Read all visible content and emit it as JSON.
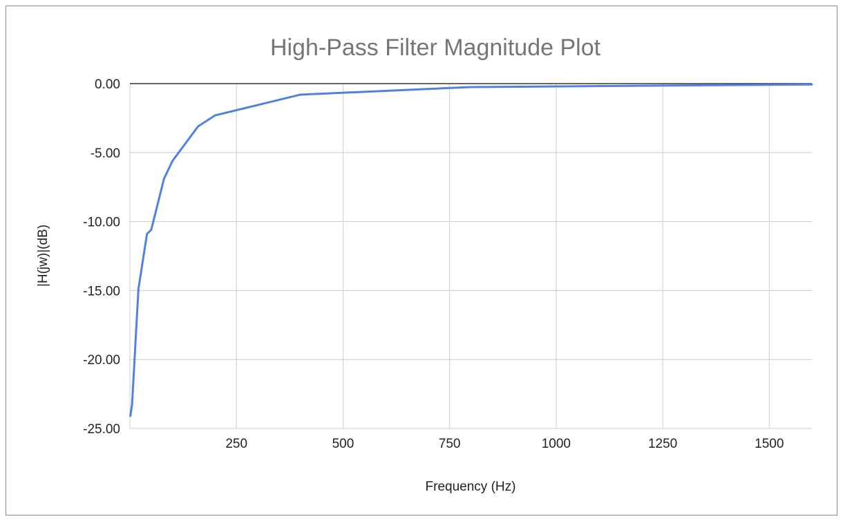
{
  "chart_data": {
    "type": "line",
    "title": "High-Pass Filter Magnitude Plot",
    "xlabel": "Frequency (Hz)",
    "ylabel": "|H(jw)|(dB)",
    "xlim": [
      0,
      1600
    ],
    "ylim": [
      -25,
      0
    ],
    "x_ticks": [
      250,
      500,
      750,
      1000,
      1250,
      1500
    ],
    "y_ticks": [
      0,
      -5,
      -10,
      -15,
      -20,
      -25
    ],
    "x_tick_labels": [
      "250",
      "500",
      "750",
      "1000",
      "1250",
      "1500"
    ],
    "y_tick_labels": [
      "0.00",
      "-5.00",
      "-10.00",
      "-15.00",
      "-20.00",
      "-25.00"
    ],
    "grid": true,
    "legend": "none",
    "series": [
      {
        "color": "#4f81e0",
        "x": [
          1,
          5,
          10,
          20,
          40,
          50,
          80,
          100,
          160,
          200,
          400,
          800,
          1600
        ],
        "y": [
          -24.1,
          -23.3,
          -20.5,
          -14.9,
          -10.9,
          -10.6,
          -6.9,
          -5.6,
          -3.1,
          -2.3,
          -0.8,
          -0.25,
          -0.06
        ]
      }
    ],
    "colors": {
      "line": "#4f81e0",
      "grid": "#cccccc",
      "zero_line": "#333333",
      "title": "#757575"
    }
  }
}
